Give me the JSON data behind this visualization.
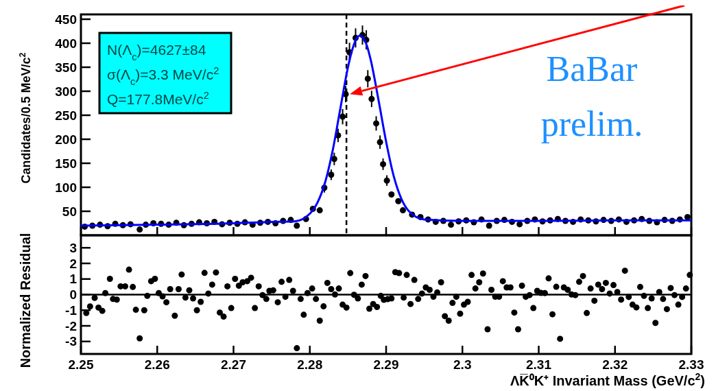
{
  "chart_data": [
    {
      "type": "scatter",
      "ylabel": "Candidates/0.5 MeV/c$^{2}$",
      "xlim": [
        2.25,
        2.33
      ],
      "ylim": [
        0,
        460
      ],
      "xticks": [
        {
          "value": 2.25,
          "label": null
        },
        {
          "value": 2.26,
          "label": null
        },
        {
          "value": 2.27,
          "label": null
        },
        {
          "value": 2.28,
          "label": null
        },
        {
          "value": 2.29,
          "label": null
        },
        {
          "value": 2.3,
          "label": null
        },
        {
          "value": 2.31,
          "label": null
        },
        {
          "value": 2.32,
          "label": null
        },
        {
          "value": 2.33,
          "label": null
        }
      ],
      "yticks": [
        50,
        100,
        150,
        200,
        250,
        300,
        350,
        400,
        450
      ],
      "tick_labels": "y",
      "annotations": [
        "N(Λ$_{c}$)=4627±84",
        "σ(Λ$_{c}$)=3.3 MeV/c$^{2}$",
        "Q=177.8MeV/c$^{2}$",
        "BaBar prelim."
      ],
      "ref_lines": [
        {
          "axis": "x",
          "value": 2.2848,
          "line_style": "dashed",
          "color": "#000000"
        }
      ],
      "series": [
        {
          "marker": "circle",
          "color": "#000000",
          "x": [
            2.2505,
            2.2515,
            2.2525,
            2.2535,
            2.2545,
            2.2555,
            2.2565,
            2.2577,
            2.2585,
            2.2595,
            2.2605,
            2.2615,
            2.2625,
            2.2635,
            2.2645,
            2.2655,
            2.2665,
            2.2675,
            2.2685,
            2.2695,
            2.2705,
            2.2715,
            2.2725,
            2.2735,
            2.2745,
            2.2755,
            2.2765,
            2.2775,
            2.2783,
            2.2795,
            2.2804,
            2.2813,
            2.2819,
            2.2828,
            2.2832,
            2.2837,
            2.2843,
            2.2847,
            2.2852,
            2.286,
            2.2869,
            2.2874,
            2.2876,
            2.2881,
            2.2887,
            2.2892,
            2.2896,
            2.2901,
            2.2907,
            2.2916,
            2.2922,
            2.2934,
            2.2945,
            2.2955,
            2.2965,
            2.2975,
            2.2985,
            2.2995,
            2.3005,
            2.3015,
            2.3025,
            2.3035,
            2.3045,
            2.3055,
            2.3065,
            2.3075,
            2.3085,
            2.3095,
            2.3105,
            2.3115,
            2.3125,
            2.3135,
            2.3145,
            2.3155,
            2.3165,
            2.3175,
            2.3185,
            2.3195,
            2.3205,
            2.3215,
            2.3225,
            2.3235,
            2.3245,
            2.3255,
            2.3265,
            2.3275,
            2.3285,
            2.3295
          ],
          "values": [
            18,
            20,
            22,
            19,
            24,
            21,
            23,
            12,
            22,
            25,
            24,
            22,
            26,
            21,
            24,
            27,
            25,
            28,
            23,
            26,
            24,
            27,
            22,
            26,
            28,
            25,
            30,
            32,
            20,
            34,
            55,
            52,
            99,
            126,
            159,
            208,
            247,
            294,
            381,
            411,
            417,
            407,
            326,
            284,
            233,
            194,
            148,
            114,
            85,
            71,
            52,
            43,
            38,
            33,
            28,
            30,
            22,
            29,
            31,
            27,
            33,
            20,
            30,
            32,
            28,
            23,
            30,
            33,
            29,
            31,
            34,
            30,
            28,
            33,
            31,
            29,
            32,
            30,
            33,
            28,
            31,
            34,
            30,
            27,
            32,
            30,
            33,
            38
          ],
          "errors": [
            null,
            null,
            null,
            null,
            null,
            null,
            null,
            null,
            null,
            null,
            null,
            null,
            null,
            null,
            null,
            null,
            null,
            null,
            null,
            null,
            null,
            null,
            null,
            null,
            null,
            null,
            null,
            null,
            null,
            null,
            null,
            null,
            10,
            11,
            13,
            14,
            16,
            17,
            20,
            20,
            20,
            20,
            18,
            17,
            15,
            14,
            12,
            11,
            null,
            null,
            null,
            null,
            null,
            null,
            null,
            null,
            null,
            null,
            null,
            null,
            null,
            null,
            null,
            null,
            null,
            null,
            null,
            null,
            null,
            null,
            null,
            null,
            null,
            null,
            null,
            null,
            null,
            null,
            null,
            null,
            null,
            null,
            null,
            null,
            null,
            null,
            null,
            null
          ]
        },
        {
          "type": "line",
          "color": "#0000ff",
          "x": [
            2.25,
            2.26,
            2.27,
            2.275,
            2.278,
            2.28,
            2.281,
            2.282,
            2.283,
            2.284,
            2.285,
            2.2855,
            2.286,
            2.2866,
            2.287,
            2.2875,
            2.288,
            2.289,
            2.29,
            2.291,
            2.292,
            2.293,
            2.295,
            2.3,
            2.31,
            2.32,
            2.33
          ],
          "values": [
            20,
            22,
            25,
            28,
            29,
            45,
            68,
            110,
            177,
            264,
            350,
            383,
            406,
            416,
            411,
            394,
            364,
            282,
            195,
            123,
            76,
            50,
            33,
            30,
            30,
            31,
            31
          ]
        }
      ]
    },
    {
      "type": "scatter",
      "xlabel": "ΛK̅⁰K⁺ Invariant Mass (GeV/c$^{2}$)",
      "ylabel": "Normalized Residual",
      "xlim": [
        2.25,
        2.33
      ],
      "ylim": [
        -3.8,
        3.8
      ],
      "xticks": [
        2.25,
        2.26,
        2.27,
        2.28,
        2.29,
        2.3,
        2.31,
        2.32,
        2.33
      ],
      "yticks": [
        -3,
        -2,
        -1,
        0,
        1,
        2,
        3
      ],
      "marker": "circle",
      "color": "#000000",
      "ref_lines": [
        {
          "axis": "y",
          "value": 0,
          "line_style": "solid",
          "color": "#000000"
        }
      ],
      "x": [
        2.2507,
        2.2512,
        2.2518,
        2.2523,
        2.2528,
        2.2532,
        2.2538,
        2.2542,
        2.2547,
        2.2552,
        2.2558,
        2.2563,
        2.2568,
        2.2572,
        2.2577,
        2.2583,
        2.2587,
        2.2592,
        2.2597,
        2.2602,
        2.2607,
        2.2612,
        2.2617,
        2.2623,
        2.2628,
        2.2632,
        2.2637,
        2.2642,
        2.2647,
        2.2652,
        2.2657,
        2.2662,
        2.2667,
        2.2672,
        2.2677,
        2.2682,
        2.2687,
        2.2692,
        2.2697,
        2.2702,
        2.2707,
        2.2712,
        2.2718,
        2.2723,
        2.2728,
        2.2733,
        2.2738,
        2.2743,
        2.2747,
        2.2752,
        2.2758,
        2.2763,
        2.2768,
        2.2773,
        2.2778,
        2.2783,
        2.2788,
        2.2792,
        2.2797,
        2.2803,
        2.2808,
        2.2813,
        2.2818,
        2.2823,
        2.2828,
        2.2833,
        2.2838,
        2.2843,
        2.2848,
        2.2853,
        2.2858,
        2.2863,
        2.2868,
        2.2873,
        2.2878,
        2.2883,
        2.2888,
        2.2893,
        2.2897,
        2.2902,
        2.2907,
        2.2912,
        2.2917,
        2.2923,
        2.2927,
        2.2932,
        2.2937,
        2.2942,
        2.2947,
        2.2952,
        2.2957,
        2.2962,
        2.2967,
        2.2972,
        2.2977,
        2.2982,
        2.2987,
        2.2992,
        2.2997,
        2.3002,
        2.3007,
        2.3012,
        2.3017,
        2.3022,
        2.3027,
        2.3033,
        2.3038,
        2.3043,
        2.3048,
        2.3053,
        2.3058,
        2.3063,
        2.3068,
        2.3073,
        2.3078,
        2.3083,
        2.3088,
        2.3093,
        2.3098,
        2.3103,
        2.3108,
        2.3113,
        2.3118,
        2.3123,
        2.3128,
        2.3133,
        2.3138,
        2.3143,
        2.3148,
        2.3153,
        2.3158,
        2.3163,
        2.3168,
        2.3173,
        2.3178,
        2.3183,
        2.3188,
        2.3193,
        2.3198,
        2.3203,
        2.3208,
        2.3213,
        2.3218,
        2.3223,
        2.3228,
        2.3233,
        2.3238,
        2.3243,
        2.3248,
        2.3253,
        2.3258,
        2.3263,
        2.3268,
        2.3273,
        2.3278,
        2.3283,
        2.3288,
        2.3293,
        2.3298
      ],
      "values": [
        -1.18,
        -0.76,
        -0.21,
        -0.83,
        -1.04,
        0.1,
        1.01,
        -0.28,
        -0.32,
        0.53,
        0.53,
        1.6,
        0.49,
        -0.97,
        -2.8,
        -1,
        -0.08,
        0.86,
        1.01,
        0.1,
        -0.11,
        -0.49,
        0.35,
        -1.35,
        0.35,
        1.29,
        -0.19,
        0.28,
        -0.24,
        -1,
        -0.46,
        1.39,
        0.07,
        0.64,
        1.42,
        -1.15,
        -1.41,
        0.53,
        -0.86,
        1.01,
        0.57,
        0.79,
        0.86,
        1.08,
        -0.86,
        0.53,
        -0.03,
        -0.28,
        0.24,
        0.28,
        -0.49,
        0.82,
        -0.14,
        0.94,
        0.24,
        -3.43,
        -0.28,
        -1.29,
        0.1,
        0.39,
        -0.28,
        -1.67,
        -0.75,
        0.75,
        0.35,
        0.01,
        0.39,
        -0.64,
        -0.83,
        1.38,
        -0.01,
        -0.24,
        0.64,
        1.19,
        -0.9,
        -0.6,
        -0.79,
        -0.08,
        -0.33,
        -0.29,
        -0.24,
        1.44,
        1.38,
        -0.19,
        1.26,
        -0.6,
        0.94,
        -0.28,
        0.07,
        0.46,
        0.31,
        -0.13,
        0.14,
        0.79,
        -1.38,
        -1.67,
        -0.53,
        -0.14,
        -1.22,
        -0.64,
        -0.46,
        1.26,
        0.39,
        0.79,
        1.35,
        -2.22,
        0.31,
        -0.13,
        -0.13,
        0.86,
        0.46,
        0.46,
        -1.15,
        -2.22,
        0.57,
        -0.14,
        -0.03,
        -0.86,
        0.24,
        0.11,
        0.1,
        1.04,
        -1.26,
        0.5,
        -2.83,
        0.46,
        0.31,
        0.01,
        -0.03,
        0.82,
        1.19,
        -1.18,
        0.39,
        -0.39,
        0.64,
        0.35,
        0.75,
        0.07,
        0.61,
        0.17,
        -0.32,
        1.53,
        -0.15,
        -0.64,
        -0.82,
        0.49,
        -0.08,
        -0.86,
        -0.24,
        -1.81,
        0.17,
        -0.28,
        -0.93,
        0.42,
        -0.03,
        -0.64,
        -0.15,
        0.39,
        1.26
      ]
    }
  ]
}
